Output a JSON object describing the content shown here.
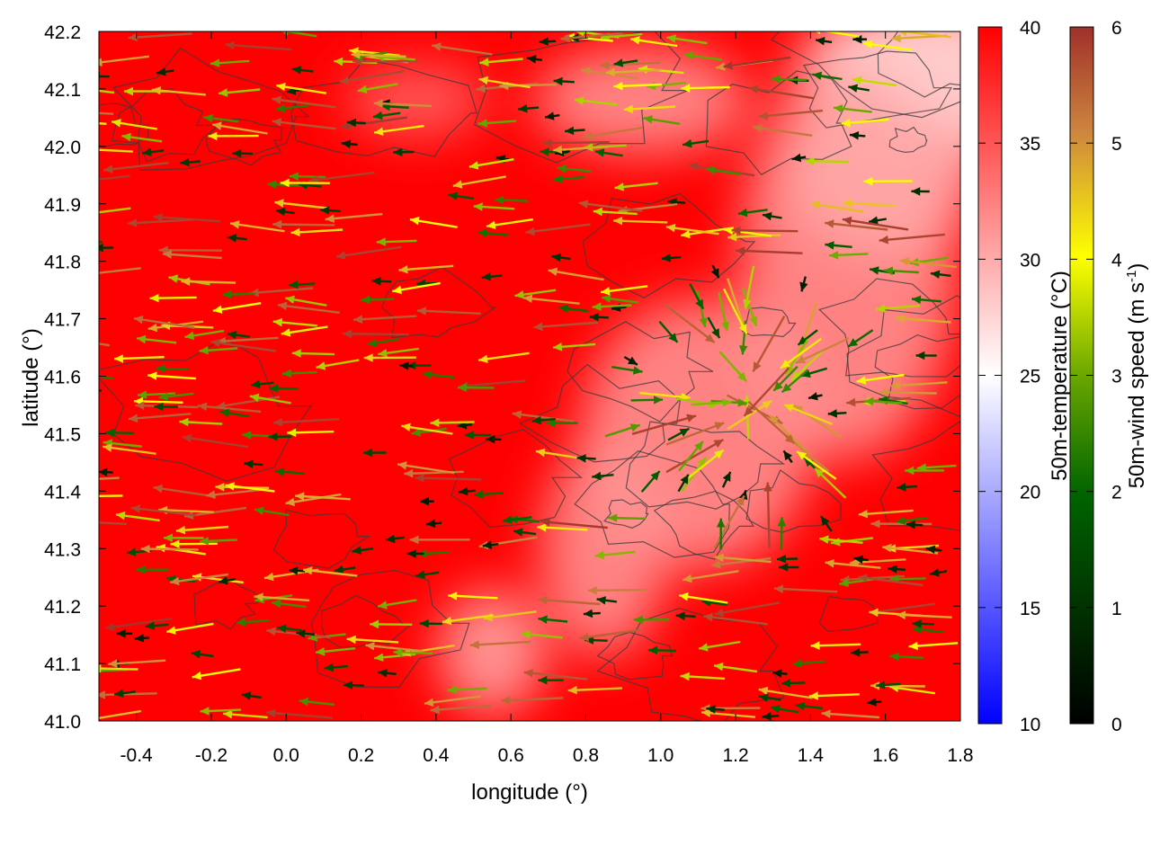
{
  "chart_data": {
    "type": "heatmap",
    "xlabel": "longitude (°)",
    "ylabel": "latitude (°)",
    "xlim": [
      -0.5,
      1.8
    ],
    "ylim": [
      41.0,
      42.2
    ],
    "x_ticks": [
      "-0.4",
      "-0.2",
      "0.0",
      "0.2",
      "0.4",
      "0.6",
      "0.8",
      "1.0",
      "1.2",
      "1.4",
      "1.6",
      "1.8"
    ],
    "y_ticks": [
      "41.0",
      "41.1",
      "41.2",
      "41.3",
      "41.4",
      "41.5",
      "41.6",
      "41.7",
      "41.8",
      "41.9",
      "42.0",
      "42.1",
      "42.2"
    ],
    "x_tick_values": [
      -0.4,
      -0.2,
      0.0,
      0.2,
      0.4,
      0.6,
      0.8,
      1.0,
      1.2,
      1.4,
      1.6,
      1.8
    ],
    "y_tick_values": [
      41.0,
      41.1,
      41.2,
      41.3,
      41.4,
      41.5,
      41.6,
      41.7,
      41.8,
      41.9,
      42.0,
      42.1,
      42.2
    ],
    "temperature_colorbar": {
      "label": "50m-temperature (°C)",
      "range": [
        10,
        40
      ],
      "ticks": [
        "10",
        "15",
        "20",
        "25",
        "30",
        "35",
        "40"
      ],
      "tick_values": [
        10,
        15,
        20,
        25,
        30,
        35,
        40
      ],
      "colors": [
        "#0000ff",
        "#ffffff",
        "#ff0000"
      ]
    },
    "wind_colorbar": {
      "label_main": "50m-wind speed (m s",
      "label_sup": "-1",
      "label_end": ")",
      "range": [
        0,
        6
      ],
      "ticks": [
        "0",
        "1",
        "2",
        "3",
        "4",
        "5",
        "6"
      ],
      "tick_values": [
        0,
        1,
        2,
        3,
        4,
        5,
        6
      ],
      "colors": [
        "#000000",
        "#006400",
        "#ffff00",
        "#cd853f",
        "#a0302a"
      ]
    },
    "temperature_field": {
      "background_c": 40,
      "cool_regions": [
        {
          "lon": 1.72,
          "lat": 42.12,
          "temp_c": 26
        },
        {
          "lon": 1.5,
          "lat": 41.8,
          "temp_c": 31
        },
        {
          "lon": 1.6,
          "lat": 41.95,
          "temp_c": 30
        },
        {
          "lon": 1.1,
          "lat": 41.5,
          "temp_c": 31
        },
        {
          "lon": 0.85,
          "lat": 41.3,
          "temp_c": 31
        },
        {
          "lon": 0.95,
          "lat": 42.08,
          "temp_c": 31
        },
        {
          "lon": 0.55,
          "lat": 41.12,
          "temp_c": 30
        },
        {
          "lon": 0.35,
          "lat": 42.08,
          "temp_c": 34
        }
      ]
    },
    "wind_field": {
      "dominant_direction": "westward",
      "speed_range": [
        0.5,
        6
      ],
      "convergence_center": {
        "lon": 1.25,
        "lat": 41.55
      }
    }
  }
}
